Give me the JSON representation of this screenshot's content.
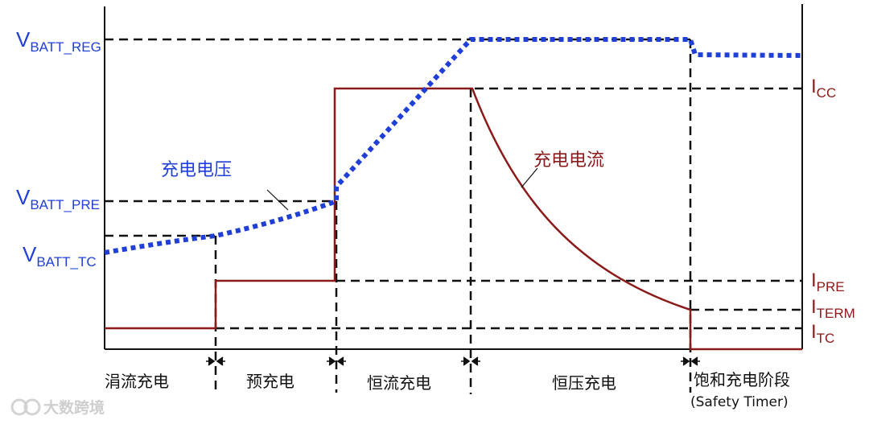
{
  "voltage_labels": {
    "reg": {
      "main": "V",
      "sub": "BATT_REG"
    },
    "pre": {
      "main": "V",
      "sub": "BATT_PRE"
    },
    "tc": {
      "main": "V",
      "sub": "BATT_TC"
    }
  },
  "current_labels": {
    "cc": {
      "main": "I",
      "sub": "CC"
    },
    "pre": {
      "main": "I",
      "sub": "PRE"
    },
    "term": {
      "main": "I",
      "sub": "TERM"
    },
    "tc": {
      "main": "I",
      "sub": "TC"
    }
  },
  "curve_labels": {
    "voltage": "充电电压",
    "current": "充电电流"
  },
  "phases": [
    {
      "label": "涓流充电"
    },
    {
      "label": "预充电"
    },
    {
      "label": "恒流充电"
    },
    {
      "label": "恒压充电"
    },
    {
      "label": "饱和充电阶段",
      "sub": "(Safety Timer)"
    }
  ],
  "watermark": "大数跨境",
  "colors": {
    "voltage": "#1f3fd6",
    "current": "#8b1a1a",
    "guide": "#111111"
  }
}
